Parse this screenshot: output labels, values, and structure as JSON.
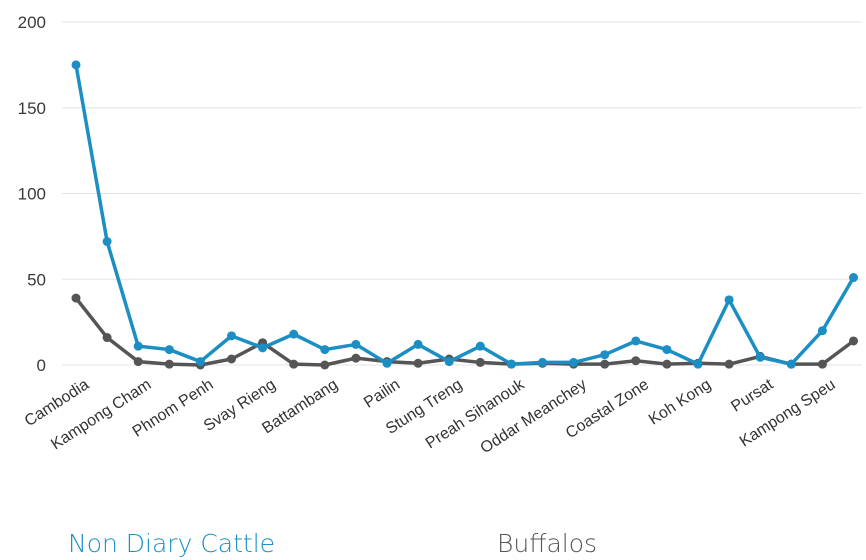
{
  "chart_data": {
    "type": "line",
    "categories": [
      "Cambodia",
      "",
      "Kampong Cham",
      "",
      "Phnom Penh",
      "",
      "Svay Rieng",
      "",
      "Battambang",
      "",
      "Pailin",
      "",
      "Stung Treng",
      "",
      "Preah Sihanouk",
      "",
      "Oddar Meanchey",
      "",
      "Coastal Zone",
      "",
      "Koh Kong",
      "",
      "Pursat",
      "",
      "Kampong Speu",
      ""
    ],
    "series": [
      {
        "name": "Non Diary Cattle",
        "color": "#1b8fc4",
        "values": [
          175,
          72,
          11,
          9,
          2,
          17,
          10,
          18,
          9,
          12,
          1,
          12,
          2,
          11,
          0.5,
          1.5,
          1.5,
          6,
          14,
          9,
          0.5,
          38,
          4.5,
          0.5,
          20,
          51
        ]
      },
      {
        "name": "Buffalos",
        "color": "#555555",
        "values": [
          39,
          16,
          2,
          0.5,
          0,
          3.5,
          13,
          0.5,
          0,
          4,
          2,
          1,
          3.5,
          1.5,
          0.5,
          1,
          0.5,
          0.5,
          2.5,
          0.5,
          1,
          0.5,
          5,
          0.5,
          0.5,
          14
        ]
      }
    ],
    "y_ticks": [
      "0",
      "50",
      "100",
      "150",
      "200"
    ],
    "ylim": [
      0,
      200
    ],
    "grid": true,
    "legend_position": "bottom"
  }
}
